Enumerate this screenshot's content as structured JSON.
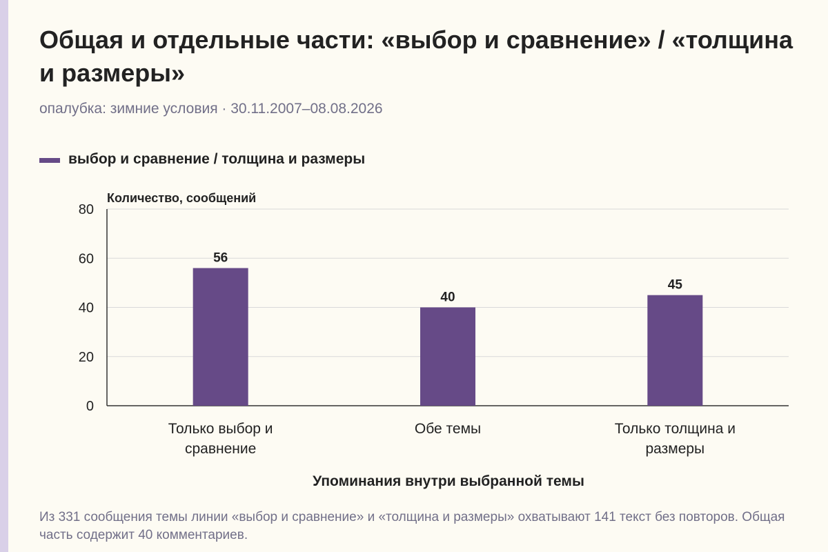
{
  "title": "Общая и отдельные части: «выбор и сравнение» / «толщина и размеры»",
  "subtitle": "опалубка: зимние условия · 30.11.2007–08.08.2026",
  "legend": {
    "label": "выбор и сравнение / толщина и размеры",
    "color": "#664a87"
  },
  "chart_data": {
    "type": "bar",
    "categories": [
      [
        "Только выбор и",
        "сравнение"
      ],
      [
        "Обе темы"
      ],
      [
        "Только толщина и",
        "размеры"
      ]
    ],
    "series": [
      {
        "name": "выбор и сравнение / толщина и размеры",
        "values": [
          56,
          40,
          45
        ]
      }
    ],
    "ylabel": "Количество, сообщений",
    "xlabel": "Упоминания внутри выбранной темы",
    "ylim": [
      0,
      80
    ],
    "yticks": [
      0,
      20,
      40,
      60,
      80
    ],
    "grid": true,
    "legend_position": "top-left",
    "bar_color": "#664a87",
    "grid_color": "#d9d9d9",
    "axis_color": "#333333"
  },
  "footnote": "Из 331 сообщения темы линии «выбор и сравнение» и «толщина и размеры» охватывают 141 текст без повторов. Общая часть содержит 40 комментариев."
}
